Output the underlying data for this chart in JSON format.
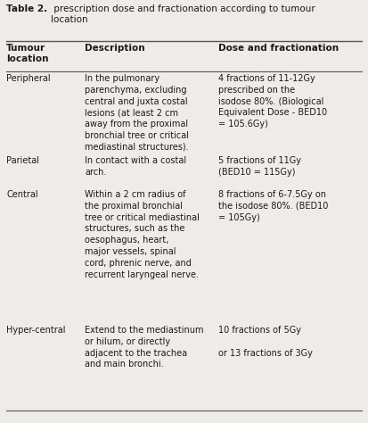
{
  "title_bold": "Table 2.",
  "title_rest": " prescription dose and fractionation according to tumour\nlocation",
  "background_color": "#eeece8",
  "header_cols": [
    "Tumour\nlocation",
    "Description",
    "Dose and fractionation"
  ],
  "rows": [
    {
      "col1": "Peripheral",
      "col2": "In the pulmonary\nparenchyma, excluding\ncentral and juxta costal\nlesions (at least 2 cm\naway from the proximal\nbronchial tree or critical\nmediastinal structures).",
      "col3": "4 fractions of 11-12Gy\nprescribed on the\nisodose 80%. (Biological\nEquivalent Dose - BED10\n= 105.6Gy)"
    },
    {
      "col1": "Parietal",
      "col2": "In contact with a costal\narch.",
      "col3": "5 fractions of 11Gy\n(BED10 = 115Gy)"
    },
    {
      "col1": "Central",
      "col2": "Within a 2 cm radius of\nthe proximal bronchial\ntree or critical mediastinal\nstructures, such as the\noesophagus, heart,\nmajor vessels, spinal\ncord, phrenic nerve, and\nrecurrent laryngeal nerve.",
      "col3": "8 fractions of 6-7.5Gy on\nthe isodose 80%. (BED10\n= 105Gy)"
    },
    {
      "col1": "Hyper-central",
      "col2": "Extend to the mediastinum\nor hilum, or directly\nadjacent to the trachea\nand main bronchi.",
      "col3": "10 fractions of 5Gy\n\nor 13 fractions of 3Gy"
    }
  ],
  "font_size": 7.0,
  "header_font_size": 7.5,
  "title_font_size": 7.5,
  "text_color": "#1a1a1a",
  "line_color": "#555555"
}
